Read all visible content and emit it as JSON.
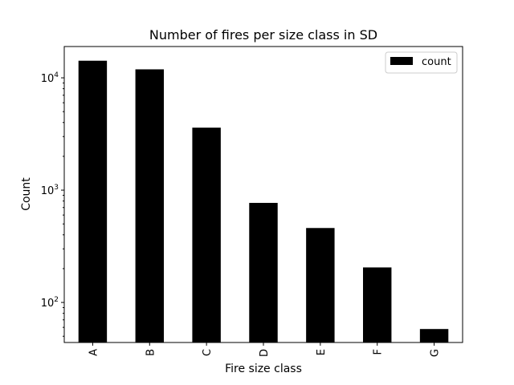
{
  "chart_data": {
    "type": "bar",
    "title": "Number of fires per size class in SD",
    "xlabel": "Fire size class",
    "ylabel": "Count",
    "categories": [
      "A",
      "B",
      "C",
      "D",
      "E",
      "F",
      "G"
    ],
    "series": [
      {
        "name": "count",
        "values": [
          14200,
          11900,
          3600,
          770,
          460,
          205,
          58
        ],
        "color": "#000000"
      }
    ],
    "yscale": "log",
    "ylim": [
      44,
      19000
    ],
    "yticks": [
      {
        "value": 100,
        "base": "10",
        "exp": "2"
      },
      {
        "value": 1000,
        "base": "10",
        "exp": "3"
      },
      {
        "value": 10000,
        "base": "10",
        "exp": "4"
      }
    ],
    "legend": "top-right",
    "grid": false
  }
}
